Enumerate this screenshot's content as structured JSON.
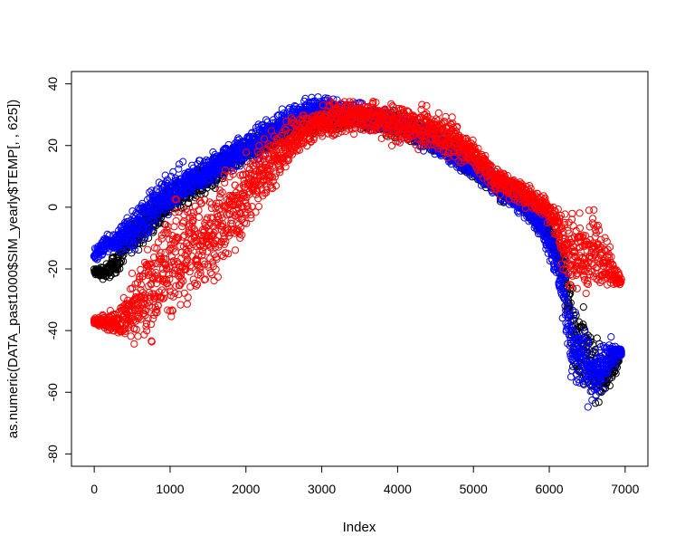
{
  "chart_data": {
    "type": "scatter",
    "title": "",
    "xlabel": "Index",
    "ylabel": "as.numeric(DATA_past1000$SIM_yearly$TEMP[, , 625])",
    "xlim": [
      -300,
      7300
    ],
    "ylim": [
      -84,
      44
    ],
    "xticks": [
      0,
      1000,
      2000,
      3000,
      4000,
      5000,
      6000,
      7000
    ],
    "yticks": [
      -80,
      -60,
      -40,
      -20,
      0,
      20,
      40
    ],
    "grid": false,
    "legend": "none",
    "marker": "open-circle",
    "series": [
      {
        "color": "#000000",
        "x": [
          0,
          150,
          300,
          400,
          700,
          1000,
          1500,
          2000,
          2500,
          3000,
          3500,
          4000,
          4500,
          5000,
          5500,
          5800,
          6000,
          6200,
          6300,
          6400,
          6500,
          6600,
          6700,
          6800,
          6950
        ],
        "y": [
          -21,
          -21,
          -18,
          -12,
          -5,
          2,
          10,
          18,
          25,
          29,
          29,
          27,
          22,
          13,
          4,
          -2,
          -8,
          -22,
          -38,
          -45,
          -48,
          -52,
          -57,
          -52,
          -47
        ],
        "spread": [
          1,
          2,
          3,
          4,
          4,
          4,
          4,
          3,
          3,
          3,
          3,
          3,
          3,
          3,
          3,
          3,
          4,
          5,
          9,
          10,
          10,
          9,
          7,
          5,
          1
        ]
      },
      {
        "color": "#0000ff",
        "x": [
          0,
          150,
          300,
          450,
          700,
          1000,
          1500,
          2000,
          2500,
          2800,
          3000,
          3500,
          4000,
          4500,
          5000,
          5500,
          5800,
          6000,
          6200,
          6300,
          6400,
          6500,
          6600,
          6700,
          6800,
          6950
        ],
        "y": [
          -16,
          -12,
          -11,
          -8,
          -2,
          5,
          12,
          19,
          27,
          31,
          32,
          30,
          27,
          21,
          13,
          4,
          -2,
          -10,
          -28,
          -46,
          -49,
          -52,
          -55,
          -53,
          -48,
          -47
        ],
        "spread": [
          2,
          2,
          3,
          6,
          6,
          5,
          4,
          4,
          4,
          3,
          3,
          3,
          3,
          3,
          3,
          3,
          3,
          5,
          8,
          10,
          9,
          8,
          7,
          6,
          4,
          1
        ]
      },
      {
        "color": "#ff0000",
        "x": [
          0,
          300,
          500,
          700,
          1000,
          1300,
          1600,
          2000,
          2300,
          2600,
          3000,
          3300,
          3600,
          4000,
          4300,
          4700,
          5000,
          5300,
          5700,
          6000,
          6100,
          6200,
          6300,
          6400,
          6500,
          6600,
          6700,
          6800,
          6950
        ],
        "y": [
          -37,
          -37,
          -34,
          -28,
          -18,
          -12,
          -8,
          4,
          14,
          22,
          28,
          29,
          29,
          27,
          26,
          23,
          17,
          9,
          4,
          -1,
          -6,
          -12,
          -15,
          -16,
          -16,
          -14,
          -15,
          -20,
          -24
        ],
        "spread": [
          1,
          3,
          8,
          12,
          14,
          14,
          12,
          10,
          8,
          6,
          4,
          4,
          4,
          5,
          5,
          5,
          4,
          3,
          3,
          3,
          5,
          8,
          10,
          12,
          12,
          10,
          8,
          5,
          1
        ]
      }
    ]
  }
}
